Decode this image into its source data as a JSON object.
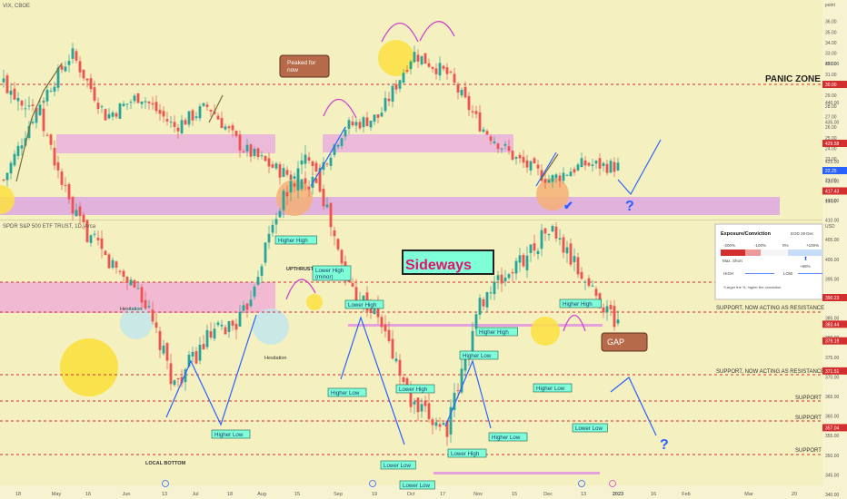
{
  "top_panel": {
    "symbol_label": "VIX, CBOE",
    "axis_unit": "point",
    "y_ticks": [
      19,
      20,
      21,
      22,
      23,
      24,
      25,
      26,
      27,
      28,
      29,
      30,
      31,
      32,
      33,
      34,
      35,
      36
    ],
    "price_badges": [
      {
        "value": "30.00",
        "color": "#d32f2f"
      },
      {
        "value": "22.25",
        "color": "#2962ff"
      }
    ],
    "panic_zone_label": "PANIC ZONE",
    "peaked_callout": "Peaked for now",
    "question_mark": "?",
    "check_mark": "✔"
  },
  "bottom_panel": {
    "symbol_label": "SPDR S&P 500 ETF TRUST, 1D, Arca",
    "axis_unit": "USD",
    "y_ticks": [
      340,
      345,
      350,
      355,
      360,
      365,
      370,
      375,
      380,
      385,
      390,
      395,
      400,
      405,
      410,
      415,
      420,
      425,
      430,
      435,
      440,
      445,
      450
    ],
    "price_badges": [
      {
        "value": "429.58",
        "color": "#d32f2f"
      },
      {
        "value": "417.43",
        "color": "#d32f2f"
      },
      {
        "value": "390.23",
        "color": "#d32f2f"
      },
      {
        "value": "383.44",
        "color": "#d32f2f"
      },
      {
        "value": "379.19",
        "color": "#d32f2f"
      },
      {
        "value": "371.51",
        "color": "#d32f2f"
      },
      {
        "value": "357.04",
        "color": "#d32f2f"
      }
    ],
    "sideways_title": "Sideways",
    "gap_callout": "GAP",
    "hesitation_labels": [
      "Hesitation",
      "Hesitation"
    ],
    "local_bottom": "LOCAL BOTTOM",
    "upthrust": "UPTHRUST",
    "question_mark": "?",
    "support_labels": [
      "SUPPORT, NOW ACTING AS RESISTANCE",
      "SUPPORT, NOW ACTING AS RESISTANCE",
      "SUPPORT",
      "SUPPORT",
      "SUPPORT"
    ],
    "swing_labels": [
      "Higher High",
      "Lower High (minor)",
      "Lower High",
      "Higher Low",
      "Lower High",
      "Lower Low",
      "Higher Low",
      "Lower Low",
      "Higher High",
      "Lower High",
      "Higher High",
      "Higher Low",
      "Higher Low",
      "Lower Low",
      "Higher Low"
    ],
    "exposure_legend": {
      "title": "Exposure/Conviction",
      "date": "EOD 29 Dec",
      "scale": [
        "-200%",
        "-100%",
        "0%",
        "+100%"
      ],
      "current": "+68%",
      "side": "Max. Short",
      "high": "HIGH",
      "low": "LOW",
      "footnote": "*Larger the %, higher the conviction"
    }
  },
  "x_axis": {
    "labels": [
      "18",
      "May",
      "16",
      "Jun",
      "13",
      "Jul",
      "18",
      "Aug",
      "15",
      "Sep",
      "19",
      "Oct",
      "17",
      "Nov",
      "15",
      "Dec",
      "13",
      "2023",
      "16",
      "Feb",
      "Mar",
      "20"
    ]
  },
  "chart_data": [
    {
      "type": "candlestick",
      "title": "VIX, CBOE",
      "ylabel": "point",
      "ylim": [
        18.5,
        36.5
      ],
      "x": [
        "18",
        "May",
        "16",
        "Jun",
        "13",
        "Jul",
        "18",
        "Aug",
        "15",
        "Sep",
        "19",
        "Oct",
        "17",
        "Nov",
        "15",
        "Dec",
        "13",
        "2023"
      ],
      "approx_close": [
        21.0,
        33.0,
        26.0,
        28.5,
        25.0,
        29.0,
        24.0,
        22.5,
        20.5,
        26.0,
        27.0,
        33.0,
        31.0,
        26.0,
        23.0,
        20.0,
        22.5,
        22.25
      ],
      "levels": [
        30.0,
        22.25
      ],
      "zones": [
        [
          24.0,
          25.5
        ],
        [
          19.0,
          20.5
        ]
      ]
    },
    {
      "type": "candlestick",
      "title": "SPDR S&P 500 ETF TRUST, 1D, Arca",
      "ylabel": "USD",
      "ylim": [
        337,
        452
      ],
      "x": [
        "18",
        "May",
        "16",
        "Jun",
        "13",
        "Jul",
        "18",
        "Aug",
        "15",
        "Sep",
        "19",
        "Oct",
        "17",
        "Nov",
        "15",
        "Dec",
        "13",
        "2023"
      ],
      "approx_close": [
        440,
        415,
        400,
        392,
        368,
        380,
        382,
        412,
        428,
        395,
        385,
        362,
        357,
        390,
        398,
        408,
        395,
        383.44
      ],
      "levels": [
        429.58,
        417.43,
        390.23,
        383.44,
        379.19,
        371.51,
        357.04
      ],
      "zones": [
        [
          417.43,
          429.58
        ]
      ]
    }
  ]
}
